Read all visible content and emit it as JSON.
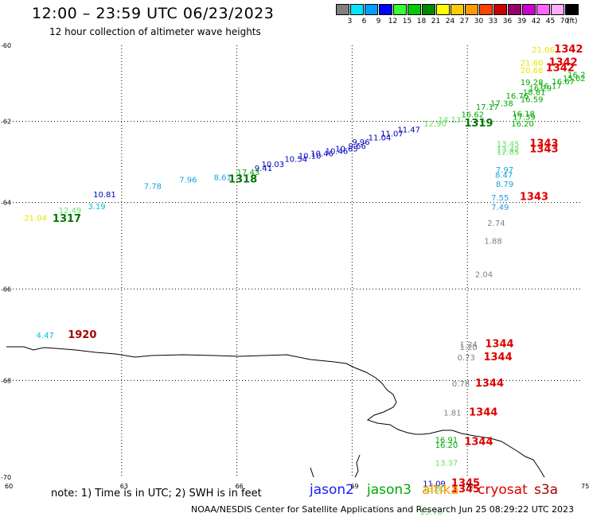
{
  "header": {
    "title": "12:00 – 23:59 UTC 06/23/2023",
    "subtitle": "12 hour collection of altimeter wave heights"
  },
  "scale": {
    "colors": [
      "#808080",
      "#00e5ff",
      "#00a0ff",
      "#0000ff",
      "#33ff33",
      "#00cc00",
      "#008800",
      "#ffff00",
      "#ffcc00",
      "#ff9900",
      "#ff4400",
      "#cc0000",
      "#990066",
      "#cc00cc",
      "#ff66ff",
      "#ffaaff",
      "#000000"
    ],
    "labels": [
      "3",
      "6",
      "9",
      "12",
      "15",
      "18",
      "21",
      "24",
      "27",
      "30",
      "33",
      "36",
      "39",
      "42",
      "45",
      "70"
    ],
    "unit": "(ft)"
  },
  "axes": {
    "x_ticks": [
      "60",
      "63",
      "66",
      "69",
      "72",
      "75"
    ],
    "y_ticks": [
      "-60",
      "-62",
      "-64",
      "-66",
      "-68",
      "-70"
    ]
  },
  "colors": {
    "gray": "#808080",
    "cyan": "#00bfd8",
    "lblue": "#1aa0e0",
    "blue": "#0000c0",
    "lgreen": "#66e066",
    "green": "#00aa00",
    "dgreen": "#007700",
    "yellow": "#e6e600",
    "red": "#e00000",
    "dred": "#aa0000"
  },
  "labels": [
    {
      "t": "21.06",
      "c": "yellow",
      "lon": 73.68,
      "lat": -60.11
    },
    {
      "t": "1342",
      "c": "red",
      "lon": 74.26,
      "lat": -60.11,
      "b": true
    },
    {
      "t": "21.60",
      "c": "yellow",
      "lon": 73.38,
      "lat": -60.46
    },
    {
      "t": "20.66",
      "c": "yellow",
      "lon": 73.38,
      "lat": -60.66
    },
    {
      "t": "1342",
      "c": "red",
      "lon": 74.12,
      "lat": -60.46,
      "b": true
    },
    {
      "t": "1342",
      "c": "red",
      "lon": 74.04,
      "lat": -60.61,
      "b": true
    },
    {
      "t": "15.62",
      "c": "green",
      "lon": 74.58,
      "lat": -60.88
    },
    {
      "t": "16.2",
      "c": "green",
      "lon": 74.84,
      "lat": -60.78
    },
    {
      "t": "16.67",
      "c": "green",
      "lon": 74.2,
      "lat": -60.96
    },
    {
      "t": "16.17",
      "c": "green",
      "lon": 73.86,
      "lat": -61.07
    },
    {
      "t": "19.28",
      "c": "green",
      "lon": 73.38,
      "lat": -60.98
    },
    {
      "t": "16.29",
      "c": "green",
      "lon": 73.6,
      "lat": -61.14
    },
    {
      "t": "18.81",
      "c": "green",
      "lon": 73.44,
      "lat": -61.24
    },
    {
      "t": "16.76",
      "c": "green",
      "lon": 73.0,
      "lat": -61.33
    },
    {
      "t": "16.59",
      "c": "green",
      "lon": 73.38,
      "lat": -61.43
    },
    {
      "t": "17.38",
      "c": "green",
      "lon": 72.6,
      "lat": -61.53
    },
    {
      "t": "17.17",
      "c": "green",
      "lon": 72.22,
      "lat": -61.62
    },
    {
      "t": "16.62",
      "c": "green",
      "lon": 71.84,
      "lat": -61.82
    },
    {
      "t": "16.18",
      "c": "green",
      "lon": 73.16,
      "lat": -61.8
    },
    {
      "t": "17.39",
      "c": "green",
      "lon": 73.18,
      "lat": -61.88
    },
    {
      "t": "16.20",
      "c": "green",
      "lon": 73.14,
      "lat": -62.05
    },
    {
      "t": "14.13",
      "c": "lgreen",
      "lon": 71.24,
      "lat": -61.95
    },
    {
      "t": "1319",
      "c": "dgreen",
      "lon": 71.92,
      "lat": -62.05,
      "b": true
    },
    {
      "t": "12.90",
      "c": "lgreen",
      "lon": 70.86,
      "lat": -62.05
    },
    {
      "t": "11.47",
      "c": "blue",
      "lon": 70.18,
      "lat": -62.2
    },
    {
      "t": "11.07",
      "c": "blue",
      "lon": 69.74,
      "lat": -62.3
    },
    {
      "t": "11.04",
      "c": "blue",
      "lon": 69.42,
      "lat": -62.4
    },
    {
      "t": "9.96",
      "c": "blue",
      "lon": 69.0,
      "lat": -62.51
    },
    {
      "t": "9.66",
      "c": "blue",
      "lon": 68.9,
      "lat": -62.61
    },
    {
      "t": "10.65",
      "c": "blue",
      "lon": 68.56,
      "lat": -62.68
    },
    {
      "t": "10.46",
      "c": "blue",
      "lon": 68.3,
      "lat": -62.74
    },
    {
      "t": "10.46",
      "c": "blue",
      "lon": 67.92,
      "lat": -62.8
    },
    {
      "t": "10.10",
      "c": "blue",
      "lon": 67.6,
      "lat": -62.86
    },
    {
      "t": "10.54",
      "c": "blue",
      "lon": 67.24,
      "lat": -62.94
    },
    {
      "t": "10.03",
      "c": "blue",
      "lon": 66.64,
      "lat": -63.06
    },
    {
      "t": "9.41",
      "c": "blue",
      "lon": 66.46,
      "lat": -63.16
    },
    {
      "t": "17.43",
      "c": "green",
      "lon": 66.0,
      "lat": -63.26
    },
    {
      "t": "8.61",
      "c": "lblue",
      "lon": 65.4,
      "lat": -63.38
    },
    {
      "t": "1318",
      "c": "dgreen",
      "lon": 65.78,
      "lat": -63.44,
      "b": true
    },
    {
      "t": "7.96",
      "c": "lblue",
      "lon": 64.5,
      "lat": -63.44
    },
    {
      "t": "7.78",
      "c": "lblue",
      "lon": 63.58,
      "lat": -63.6
    },
    {
      "t": "10.81",
      "c": "blue",
      "lon": 62.26,
      "lat": -63.8
    },
    {
      "t": "3.19",
      "c": "cyan",
      "lon": 62.12,
      "lat": -64.08
    },
    {
      "t": "12.49",
      "c": "lgreen",
      "lon": 61.36,
      "lat": -64.18
    },
    {
      "t": "21.04",
      "c": "yellow",
      "lon": 60.46,
      "lat": -64.36
    },
    {
      "t": "1317",
      "c": "dgreen",
      "lon": 61.2,
      "lat": -64.38,
      "b": true
    },
    {
      "t": "13.45",
      "c": "lgreen",
      "lon": 72.76,
      "lat": -62.56
    },
    {
      "t": "13.42",
      "c": "lgreen",
      "lon": 72.76,
      "lat": -62.7
    },
    {
      "t": "12.85",
      "c": "lgreen",
      "lon": 72.76,
      "lat": -62.76
    },
    {
      "t": "1343",
      "c": "red",
      "lon": 73.62,
      "lat": -62.56,
      "b": true
    },
    {
      "t": "1343",
      "c": "red",
      "lon": 73.62,
      "lat": -62.7,
      "b": true
    },
    {
      "t": "7.97",
      "c": "lblue",
      "lon": 72.74,
      "lat": -63.2
    },
    {
      "t": "8.47",
      "c": "lblue",
      "lon": 72.72,
      "lat": -63.33
    },
    {
      "t": "8.79",
      "c": "lblue",
      "lon": 72.74,
      "lat": -63.55
    },
    {
      "t": "7.55",
      "c": "lblue",
      "lon": 72.62,
      "lat": -63.87
    },
    {
      "t": "7.49",
      "c": "lblue",
      "lon": 72.62,
      "lat": -64.1
    },
    {
      "t": "1343",
      "c": "red",
      "lon": 73.36,
      "lat": -63.86,
      "b": true
    },
    {
      "t": "2.74",
      "c": "gray",
      "lon": 72.52,
      "lat": -64.48
    },
    {
      "t": "1.88",
      "c": "gray",
      "lon": 72.44,
      "lat": -64.9
    },
    {
      "t": "2.04",
      "c": "gray",
      "lon": 72.2,
      "lat": -65.66
    },
    {
      "t": "4.47",
      "c": "cyan",
      "lon": 60.78,
      "lat": -67.02
    },
    {
      "t": "1920",
      "c": "dred",
      "lon": 61.6,
      "lat": -67.02,
      "b": true
    },
    {
      "t": "1.24",
      "c": "gray",
      "lon": 71.8,
      "lat": -67.22
    },
    {
      "t": "1.20",
      "c": "gray",
      "lon": 71.8,
      "lat": -67.28
    },
    {
      "t": "0.73",
      "c": "gray",
      "lon": 71.74,
      "lat": -67.5
    },
    {
      "t": "1344",
      "c": "red",
      "lon": 72.46,
      "lat": -67.22,
      "b": true
    },
    {
      "t": "1344",
      "c": "red",
      "lon": 72.42,
      "lat": -67.5,
      "b": true
    },
    {
      "t": "0.78",
      "c": "gray",
      "lon": 71.6,
      "lat": -68.06
    },
    {
      "t": "1344",
      "c": "red",
      "lon": 72.2,
      "lat": -68.06,
      "b": true
    },
    {
      "t": "1.81",
      "c": "gray",
      "lon": 71.38,
      "lat": -68.67
    },
    {
      "t": "1344",
      "c": "red",
      "lon": 72.04,
      "lat": -68.67,
      "b": true
    },
    {
      "t": "16.91",
      "c": "green",
      "lon": 71.16,
      "lat": -69.23
    },
    {
      "t": "16.20",
      "c": "green",
      "lon": 71.16,
      "lat": -69.34
    },
    {
      "t": "1344",
      "c": "red",
      "lon": 71.92,
      "lat": -69.28,
      "b": true
    },
    {
      "t": "13.37",
      "c": "lgreen",
      "lon": 71.16,
      "lat": -69.7
    },
    {
      "t": "11.09",
      "c": "blue",
      "lon": 70.84,
      "lat": -70.12
    },
    {
      "t": "13.80",
      "c": "lgreen",
      "lon": 70.84,
      "lat": -70.22
    },
    {
      "t": "1345",
      "c": "red",
      "lon": 71.58,
      "lat": -70.12,
      "b": true
    },
    {
      "t": "1345",
      "c": "red",
      "lon": 71.58,
      "lat": -70.24,
      "b": true
    },
    {
      "t": "13.78",
      "c": "lgreen",
      "lon": 70.76,
      "lat": -70.68
    }
  ],
  "legend": {
    "note": "note: 1) Time is in UTC; 2) SWH is in feet",
    "satellites": [
      {
        "name": "jason2",
        "color": "#1a1aff"
      },
      {
        "name": "jason3",
        "color": "#00aa00"
      },
      {
        "name": "altika",
        "color": "#ff9900"
      },
      {
        "name": "cryosat",
        "color": "#e00000"
      },
      {
        "name": "s3a",
        "color": "#aa0000"
      }
    ]
  },
  "footer": "NOAA/NESDIS Center for Satellite Applications and Research    Jun 25 08:29:22 UTC 2023"
}
